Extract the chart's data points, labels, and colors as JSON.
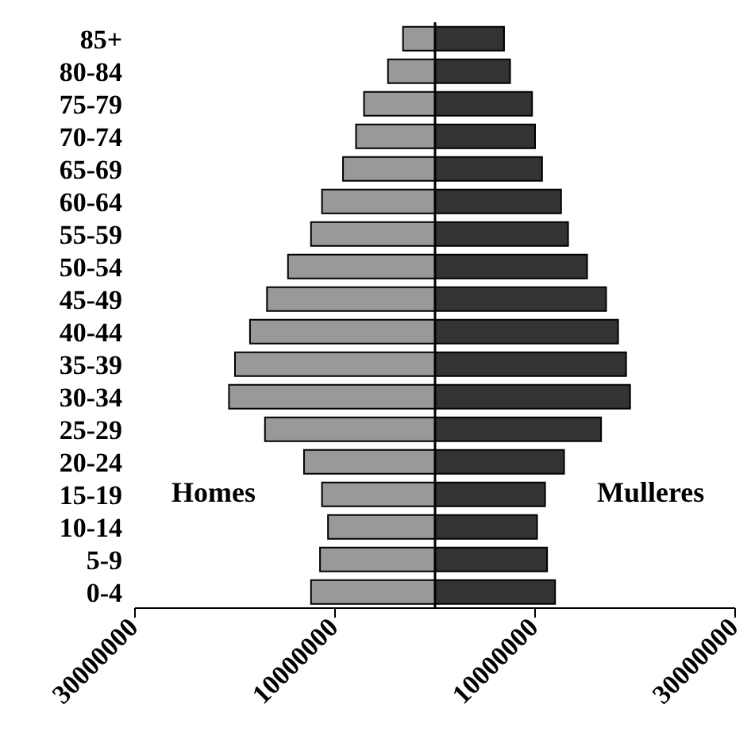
{
  "chart_data": {
    "type": "bar",
    "orientation": "horizontal",
    "stacked": true,
    "categories": [
      "85+",
      "80-84",
      "75-79",
      "70-74",
      "65-69",
      "60-64",
      "55-59",
      "50-54",
      "45-49",
      "40-44",
      "35-39",
      "30-34",
      "25-29",
      "20-24",
      "15-19",
      "10-14",
      "5-9",
      "0-4"
    ],
    "series": [
      {
        "name": "Homes",
        "color": "#999999",
        "values": [
          -3200000,
          -4700000,
          -7100000,
          -7900000,
          -9200000,
          -11300000,
          -12400000,
          -14700000,
          -16800000,
          -18500000,
          -20000000,
          -20600000,
          -17000000,
          -13100000,
          -11300000,
          -10700000,
          -11500000,
          -12400000
        ]
      },
      {
        "name": "Mulleres",
        "color": "#333333",
        "values": [
          6900000,
          7500000,
          9700000,
          10000000,
          10700000,
          12600000,
          13300000,
          15200000,
          17100000,
          18300000,
          19100000,
          19500000,
          16600000,
          12900000,
          11000000,
          10200000,
          11200000,
          12000000
        ]
      }
    ],
    "xlim": [
      -30000000,
      30000000
    ],
    "xticks": [
      {
        "value": -30000000,
        "label": "30000000"
      },
      {
        "value": -10000000,
        "label": "10000000"
      },
      {
        "value": 10000000,
        "label": "10000000"
      },
      {
        "value": 30000000,
        "label": "30000000"
      }
    ],
    "ref_lines": [
      {
        "axis": "x",
        "value": 0,
        "color": "#000000"
      }
    ],
    "grid": false,
    "legend": false
  }
}
